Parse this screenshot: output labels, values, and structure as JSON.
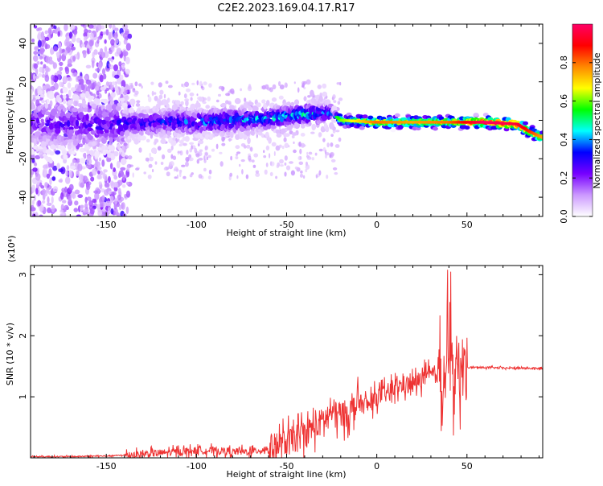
{
  "title": "C2E2.2023.169.04.17.R17",
  "chart_data": [
    {
      "type": "heatmap",
      "xlabel": "Height of straight line (km)",
      "ylabel": "Frequency (Hz)",
      "xlim": [
        -192,
        92
      ],
      "ylim": [
        -50,
        50
      ],
      "xticks": [
        -150,
        -100,
        -50,
        0,
        50
      ],
      "xtick_labels": [
        "-150",
        "-100",
        "-50",
        "0",
        "50"
      ],
      "yticks": [
        -40,
        -20,
        0,
        20,
        40
      ],
      "ytick_labels": [
        "-40",
        "-20",
        "0",
        "20",
        "40"
      ],
      "colorbar": {
        "label": "Normalized spectral amplitude",
        "range": [
          0,
          1
        ],
        "ticks": [
          0.0,
          0.2,
          0.4,
          0.6,
          0.8
        ],
        "tick_labels": [
          "0.0",
          "0.2",
          "0.4",
          "0.6",
          "0.8"
        ],
        "colors": [
          "#ffffff",
          "#cc99ff",
          "#7700ff",
          "#0000ff",
          "#00ffff",
          "#00ff00",
          "#ffff00",
          "#ff8800",
          "#ff0000",
          "#ff0066"
        ]
      },
      "ridge": {
        "x": [
          -190,
          -150,
          -120,
          -100,
          -80,
          -60,
          -40,
          -25,
          -20,
          0,
          20,
          40,
          60,
          78,
          85,
          92
        ],
        "freq": [
          -2,
          -2,
          -1,
          -1,
          0,
          1,
          3,
          4,
          0,
          -1,
          -1,
          -1,
          -1,
          -2,
          -6,
          -9
        ],
        "peak_amplitude": [
          0.25,
          0.3,
          0.35,
          0.4,
          0.45,
          0.45,
          0.5,
          0.4,
          0.55,
          0.75,
          0.7,
          0.75,
          0.95,
          0.9,
          0.8,
          0.7
        ]
      },
      "grid": false
    },
    {
      "type": "line",
      "xlabel": "Height of straight line (km)",
      "ylabel": "SNR (10 * v/v)",
      "y_multiplier": "(x10⁴)",
      "xlim": [
        -192,
        92
      ],
      "ylim": [
        0,
        3.15
      ],
      "xticks": [
        -150,
        -100,
        -50,
        0,
        50
      ],
      "xtick_labels": [
        "-150",
        "-100",
        "-50",
        "0",
        "50"
      ],
      "yticks": [
        1,
        2,
        3
      ],
      "ytick_labels": [
        "1",
        "2",
        "3"
      ],
      "color": "#ee3333",
      "series": [
        {
          "x": [
            -192,
            -170,
            -150,
            -135,
            -120,
            -110,
            -100,
            -90,
            -80,
            -70,
            -60,
            -50,
            -40,
            -30,
            -25,
            -20,
            -15,
            -10,
            -5,
            0,
            5,
            10,
            15,
            20,
            25,
            30,
            35,
            38,
            40,
            42,
            44,
            46,
            48,
            50,
            60,
            70,
            80,
            92
          ],
          "y": [
            0.02,
            0.02,
            0.03,
            0.05,
            0.08,
            0.1,
            0.12,
            0.12,
            0.1,
            0.1,
            0.15,
            0.25,
            0.4,
            0.6,
            0.75,
            0.7,
            0.75,
            0.9,
            0.85,
            1.0,
            1.05,
            1.15,
            1.2,
            1.2,
            1.3,
            1.35,
            1.4,
            1.45,
            1.5,
            1.4,
            1.45,
            1.5,
            1.45,
            1.48,
            1.48,
            1.47,
            1.47,
            1.46
          ]
        }
      ],
      "noise_amplitude": [
        {
          "from": -192,
          "to": -140,
          "amp": 0.02
        },
        {
          "from": -140,
          "to": -60,
          "amp": 0.12
        },
        {
          "from": -60,
          "to": -10,
          "amp": 0.45
        },
        {
          "from": -10,
          "to": 34,
          "amp": 0.3
        },
        {
          "from": 34,
          "to": 50,
          "amp": 1.1
        },
        {
          "from": 50,
          "to": 92,
          "amp": 0.03
        }
      ],
      "grid": false
    }
  ]
}
